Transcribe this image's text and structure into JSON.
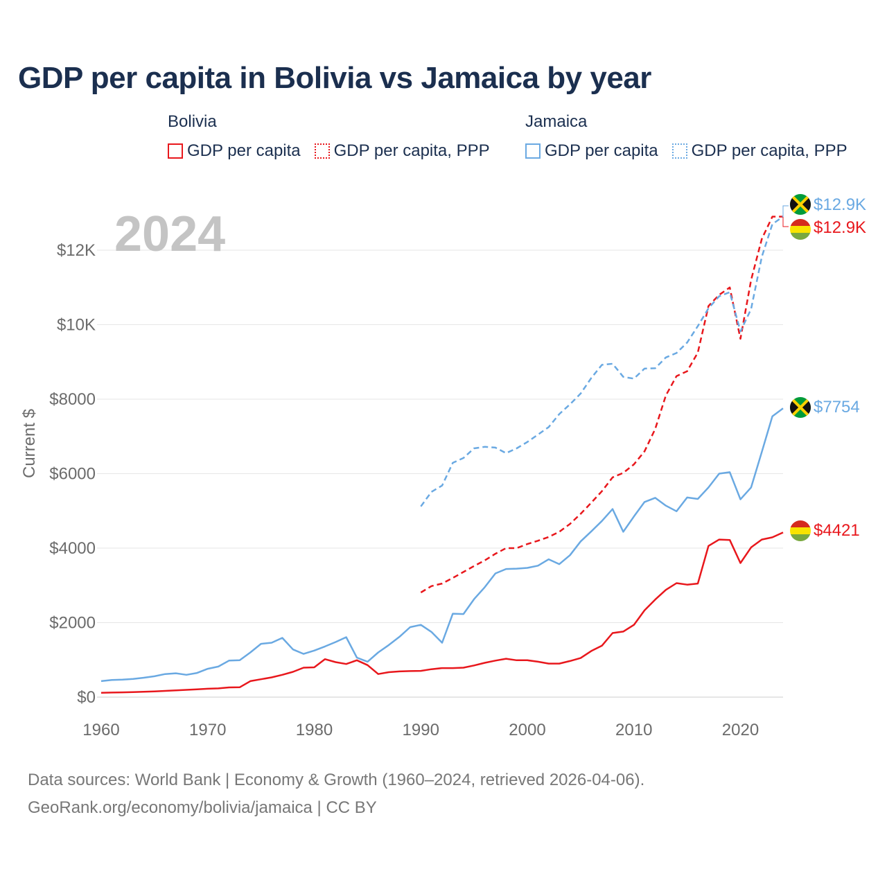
{
  "title": "GDP per capita in Bolivia vs Jamaica by year",
  "legend": {
    "groups": [
      {
        "name": "Bolivia",
        "items": [
          "GDP per capita",
          "GDP per capita, PPP"
        ]
      },
      {
        "name": "Jamaica",
        "items": [
          "GDP per capita",
          "GDP per capita, PPP"
        ]
      }
    ]
  },
  "year_label": "2024",
  "source": {
    "line1": "Data sources: World Bank | Economy & Growth (1960–2024, retrieved 2026-04-06).",
    "line2": "GeoRank.org/economy/bolivia/jamaica | CC BY"
  },
  "colors": {
    "bolivia": "#e8171c",
    "jamaica": "#6aa9e2",
    "grid": "#e6e6e6",
    "title": "#1b2f4f"
  },
  "chart_data": {
    "type": "line",
    "title": "GDP per capita in Bolivia vs Jamaica by year",
    "xlabel": "",
    "ylabel": "Current $",
    "xlim": [
      1960,
      2024
    ],
    "ylim": [
      0,
      13500
    ],
    "x_ticks": [
      1960,
      1970,
      1980,
      1990,
      2000,
      2010,
      2020
    ],
    "y_ticks": [
      0,
      2000,
      4000,
      6000,
      8000,
      10000,
      12000
    ],
    "y_tick_labels": [
      "$0",
      "$2000",
      "$4000",
      "$6000",
      "$8000",
      "$10K",
      "$12K"
    ],
    "end_labels": {
      "jamaica_ppp": "$12.9K",
      "bolivia_ppp": "$12.9K",
      "jamaica_gdp": "$7754",
      "bolivia_gdp": "$4421"
    },
    "series": [
      {
        "name": "Bolivia GDP per capita",
        "country": "bolivia",
        "style": "solid",
        "x": [
          1960,
          1961,
          1962,
          1963,
          1964,
          1965,
          1966,
          1967,
          1968,
          1969,
          1970,
          1971,
          1972,
          1973,
          1974,
          1975,
          1976,
          1977,
          1978,
          1979,
          1980,
          1981,
          1982,
          1983,
          1984,
          1985,
          1986,
          1987,
          1988,
          1989,
          1990,
          1991,
          1992,
          1993,
          1994,
          1995,
          1996,
          1997,
          1998,
          1999,
          2000,
          2001,
          2002,
          2003,
          2004,
          2005,
          2006,
          2007,
          2008,
          2009,
          2010,
          2011,
          2012,
          2013,
          2014,
          2015,
          2016,
          2017,
          2018,
          2019,
          2020,
          2021,
          2022,
          2023,
          2024
        ],
        "values": [
          115,
          122,
          128,
          135,
          145,
          155,
          168,
          180,
          195,
          210,
          225,
          235,
          260,
          265,
          430,
          480,
          530,
          600,
          680,
          790,
          800,
          1020,
          940,
          890,
          990,
          860,
          620,
          670,
          690,
          700,
          705,
          750,
          780,
          780,
          790,
          850,
          920,
          980,
          1030,
          990,
          990,
          950,
          900,
          900,
          970,
          1050,
          1240,
          1380,
          1720,
          1760,
          1940,
          2330,
          2620,
          2880,
          3060,
          3020,
          3050,
          4060,
          4230,
          4220,
          3600,
          4020,
          4230,
          4290,
          4421
        ]
      },
      {
        "name": "Bolivia GDP per capita, PPP",
        "country": "bolivia",
        "style": "dashed",
        "x": [
          1990,
          1991,
          1992,
          1993,
          1994,
          1995,
          1996,
          1997,
          1998,
          1999,
          2000,
          2001,
          2002,
          2003,
          2004,
          2005,
          2006,
          2007,
          2008,
          2009,
          2010,
          2011,
          2012,
          2013,
          2014,
          2015,
          2016,
          2017,
          2018,
          2019,
          2020,
          2021,
          2022,
          2023,
          2024
        ],
        "values": [
          2810,
          2980,
          3050,
          3200,
          3360,
          3520,
          3670,
          3850,
          4000,
          4000,
          4110,
          4200,
          4300,
          4440,
          4650,
          4920,
          5220,
          5530,
          5900,
          6020,
          6250,
          6600,
          7200,
          8100,
          8620,
          8750,
          9250,
          10500,
          10800,
          11000,
          9620,
          11200,
          12300,
          12900,
          12900
        ]
      },
      {
        "name": "Jamaica GDP per capita",
        "country": "jamaica",
        "style": "solid",
        "x": [
          1960,
          1961,
          1962,
          1963,
          1964,
          1965,
          1966,
          1967,
          1968,
          1969,
          1970,
          1971,
          1972,
          1973,
          1974,
          1975,
          1976,
          1977,
          1978,
          1979,
          1980,
          1981,
          1982,
          1983,
          1984,
          1985,
          1986,
          1987,
          1988,
          1989,
          1990,
          1991,
          1992,
          1993,
          1994,
          1995,
          1996,
          1997,
          1998,
          1999,
          2000,
          2001,
          2002,
          2003,
          2004,
          2005,
          2006,
          2007,
          2008,
          2009,
          2010,
          2011,
          2012,
          2013,
          2014,
          2015,
          2016,
          2017,
          2018,
          2019,
          2020,
          2021,
          2022,
          2023,
          2024
        ],
        "values": [
          430,
          460,
          470,
          490,
          520,
          560,
          620,
          640,
          600,
          650,
          760,
          820,
          980,
          990,
          1200,
          1430,
          1460,
          1590,
          1280,
          1160,
          1250,
          1360,
          1480,
          1610,
          1060,
          950,
          1200,
          1400,
          1620,
          1880,
          1940,
          1750,
          1460,
          2240,
          2230,
          2630,
          2950,
          3320,
          3440,
          3450,
          3470,
          3530,
          3700,
          3570,
          3810,
          4180,
          4450,
          4730,
          5050,
          4440,
          4850,
          5240,
          5350,
          5140,
          4990,
          5360,
          5320,
          5630,
          6000,
          6040,
          5310,
          5630,
          6580,
          7540,
          7754
        ]
      },
      {
        "name": "Jamaica GDP per capita, PPP",
        "country": "jamaica",
        "style": "dashed",
        "x": [
          1990,
          1991,
          1992,
          1993,
          1994,
          1995,
          1996,
          1997,
          1998,
          1999,
          2000,
          2001,
          2002,
          2003,
          2004,
          2005,
          2006,
          2007,
          2008,
          2009,
          2010,
          2011,
          2012,
          2013,
          2014,
          2015,
          2016,
          2017,
          2018,
          2019,
          2020,
          2021,
          2022,
          2023,
          2024
        ],
        "values": [
          5120,
          5510,
          5680,
          6290,
          6420,
          6680,
          6720,
          6700,
          6550,
          6680,
          6850,
          7050,
          7250,
          7600,
          7860,
          8150,
          8570,
          8920,
          8950,
          8600,
          8550,
          8820,
          8830,
          9120,
          9240,
          9520,
          9960,
          10440,
          10760,
          10870,
          9820,
          10420,
          11820,
          12700,
          12900
        ]
      }
    ]
  }
}
